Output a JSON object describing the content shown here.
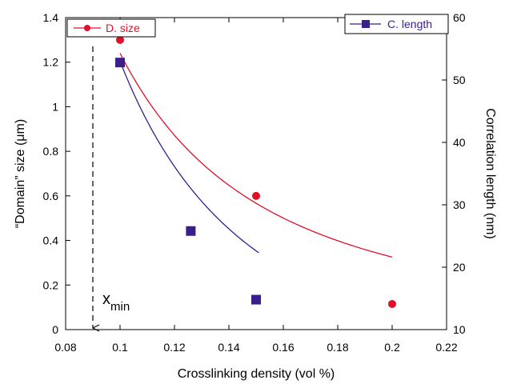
{
  "chart_data": {
    "type": "scatter",
    "xlabel": "Crosslinking density  (vol %)",
    "ylabel_left": "“Domain” size  (μm)",
    "ylabel_right": "Correlation length  (nm)",
    "xlim": [
      0.08,
      0.22
    ],
    "ylim_left": [
      0,
      1.4
    ],
    "ylim_right": [
      10,
      60
    ],
    "x_ticks": [
      "0.08",
      "0.1",
      "0.12",
      "0.14",
      "0.16",
      "0.18",
      "0.2",
      "0.22"
    ],
    "y_left_ticks": [
      "0",
      "0.2",
      "0.4",
      "0.6",
      "0.8",
      "1",
      "1.2",
      "1.4"
    ],
    "y_right_ticks": [
      "10",
      "20",
      "30",
      "40",
      "50",
      "60"
    ],
    "series": [
      {
        "name": "D. size",
        "axis": "left",
        "color": "#e0102a",
        "marker": "circle",
        "points": [
          {
            "x": 0.1,
            "y": 1.3
          },
          {
            "x": 0.15,
            "y": 0.6
          },
          {
            "x": 0.2,
            "y": 0.115
          }
        ]
      },
      {
        "name": "C. length",
        "axis": "right",
        "color": "#3a1e8c",
        "marker": "square",
        "points": [
          {
            "x": 0.1,
            "y": 52.8
          },
          {
            "x": 0.126,
            "y": 25.8
          },
          {
            "x": 0.15,
            "y": 14.8
          }
        ]
      }
    ],
    "fit_curves": [
      {
        "series": "D. size",
        "axis": "left",
        "color": "#e0102a",
        "x_range": [
          0.1,
          0.2
        ],
        "model": "power-law",
        "anchor": [
          0.1,
          1.24
        ],
        "exponent": 1.93
      },
      {
        "series": "C. length",
        "axis": "right",
        "color": "#3a1e8c",
        "x_range": [
          0.1,
          0.151
        ],
        "model": "power-law",
        "anchor": [
          0.1,
          53
        ],
        "exponent": 2.1
      }
    ],
    "annotation": {
      "label": "x",
      "subscript": "min",
      "x": 0.09,
      "arrow": "dashed vertical line pointing down to x-axis"
    },
    "legends": [
      {
        "label": "D. size",
        "placement": "top-left"
      },
      {
        "label": "C. length",
        "placement": "top-right"
      }
    ],
    "grid": false
  }
}
